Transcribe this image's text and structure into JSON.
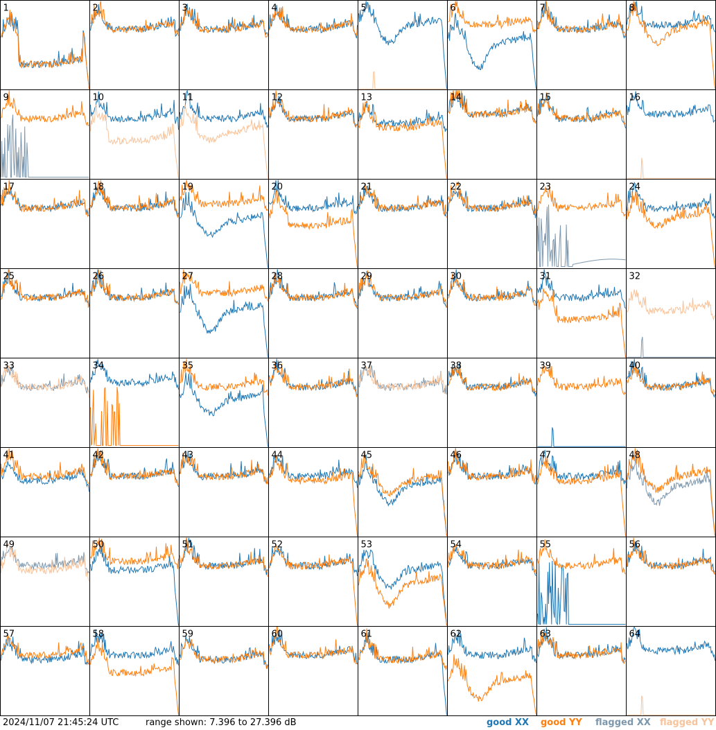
{
  "timestamp": "2024/11/07 21:45:24 UTC",
  "range_text": "range shown: 7.396 to 27.396 dB",
  "legend": [
    {
      "word": "good",
      "pol": "XX",
      "color": "#1f77b4"
    },
    {
      "word": "good",
      "pol": "YY",
      "color": "#ff7f0e"
    },
    {
      "word": "flagged",
      "pol": "XX",
      "color": "#7d97ad"
    },
    {
      "word": "flagged",
      "pol": "YY",
      "color": "#f8c39a"
    }
  ],
  "chart_data": {
    "type": "line",
    "ylim": [
      7.396,
      27.396
    ],
    "units": "dB",
    "grid_rows": 8,
    "grid_cols": 8,
    "panels": [
      {
        "id": "1",
        "xx": {
          "state": "good",
          "shape": "sag",
          "base": 19,
          "depth": 6
        },
        "yy": {
          "state": "good",
          "shape": "sag",
          "base": 19,
          "depth": 6
        }
      },
      {
        "id": "2",
        "xx": {
          "state": "good",
          "shape": "normal",
          "base": 21
        },
        "yy": {
          "state": "good",
          "shape": "normal",
          "base": 21
        }
      },
      {
        "id": "3",
        "xx": {
          "state": "good",
          "shape": "normal",
          "base": 21
        },
        "yy": {
          "state": "good",
          "shape": "normal",
          "base": 21
        }
      },
      {
        "id": "4",
        "xx": {
          "state": "good",
          "shape": "normal",
          "base": 21
        },
        "yy": {
          "state": "good",
          "shape": "normal",
          "base": 21
        }
      },
      {
        "id": "5",
        "xx": {
          "state": "good",
          "shape": "dip",
          "base": 22,
          "depth": 4
        },
        "yy": {
          "state": "flagged",
          "shape": "dead"
        }
      },
      {
        "id": "6",
        "xx": {
          "state": "good",
          "shape": "dip",
          "base": 18,
          "depth": 6
        },
        "yy": {
          "state": "good",
          "shape": "normal",
          "base": 22
        }
      },
      {
        "id": "7",
        "xx": {
          "state": "good",
          "shape": "normal",
          "base": 21
        },
        "yy": {
          "state": "good",
          "shape": "normal",
          "base": 21
        }
      },
      {
        "id": "8",
        "xx": {
          "state": "good",
          "shape": "normal",
          "base": 22
        },
        "yy": {
          "state": "good",
          "shape": "dip",
          "base": 21,
          "depth": 3
        }
      },
      {
        "id": "9",
        "xx": {
          "state": "flagged",
          "shape": "spiky"
        },
        "yy": {
          "state": "good",
          "shape": "normal",
          "base": 21
        }
      },
      {
        "id": "10",
        "xx": {
          "state": "good",
          "shape": "normal",
          "base": 21
        },
        "yy": {
          "state": "flagged",
          "shape": "sag",
          "base": 18,
          "depth": 2
        }
      },
      {
        "id": "11",
        "xx": {
          "state": "good",
          "shape": "normal",
          "base": 21
        },
        "yy": {
          "state": "flagged",
          "shape": "dip",
          "base": 18,
          "depth": 2
        }
      },
      {
        "id": "12",
        "xx": {
          "state": "good",
          "shape": "normal",
          "base": 21
        },
        "yy": {
          "state": "good",
          "shape": "normal",
          "base": 21
        }
      },
      {
        "id": "13",
        "xx": {
          "state": "good",
          "shape": "normal",
          "base": 20
        },
        "yy": {
          "state": "good",
          "shape": "drop",
          "base": 19
        }
      },
      {
        "id": "14",
        "xx": {
          "state": "good",
          "shape": "normal",
          "base": 22
        },
        "yy": {
          "state": "good",
          "shape": "normal",
          "base": 22
        }
      },
      {
        "id": "15",
        "xx": {
          "state": "good",
          "shape": "normal",
          "base": 21
        },
        "yy": {
          "state": "good",
          "shape": "normal",
          "base": 21
        }
      },
      {
        "id": "16",
        "xx": {
          "state": "good",
          "shape": "normal",
          "base": 22
        },
        "yy": {
          "state": "flagged",
          "shape": "dead"
        }
      },
      {
        "id": "17",
        "xx": {
          "state": "good",
          "shape": "normal",
          "base": 21
        },
        "yy": {
          "state": "good",
          "shape": "normal",
          "base": 21
        }
      },
      {
        "id": "18",
        "xx": {
          "state": "good",
          "shape": "normal",
          "base": 21
        },
        "yy": {
          "state": "good",
          "shape": "normal",
          "base": 21
        }
      },
      {
        "id": "19",
        "xx": {
          "state": "good",
          "shape": "dip",
          "base": 18,
          "depth": 3
        },
        "yy": {
          "state": "good",
          "shape": "normal",
          "base": 22
        }
      },
      {
        "id": "20",
        "xx": {
          "state": "good",
          "shape": "normal",
          "base": 21
        },
        "yy": {
          "state": "good",
          "shape": "sag",
          "base": 19,
          "depth": 2
        }
      },
      {
        "id": "21",
        "xx": {
          "state": "good",
          "shape": "normal",
          "base": 21
        },
        "yy": {
          "state": "good",
          "shape": "normal",
          "base": 21
        }
      },
      {
        "id": "22",
        "xx": {
          "state": "good",
          "shape": "normal",
          "base": 21
        },
        "yy": {
          "state": "good",
          "shape": "normal",
          "base": 21
        }
      },
      {
        "id": "23",
        "xx": {
          "state": "flagged",
          "shape": "spiky_low"
        },
        "yy": {
          "state": "good",
          "shape": "normal",
          "base": 21
        }
      },
      {
        "id": "24",
        "xx": {
          "state": "good",
          "shape": "normal",
          "base": 21
        },
        "yy": {
          "state": "good",
          "shape": "dip",
          "base": 19,
          "depth": 2
        }
      },
      {
        "id": "25",
        "xx": {
          "state": "good",
          "shape": "normal",
          "base": 21
        },
        "yy": {
          "state": "good",
          "shape": "normal",
          "base": 21
        }
      },
      {
        "id": "26",
        "xx": {
          "state": "good",
          "shape": "normal",
          "base": 21
        },
        "yy": {
          "state": "good",
          "shape": "normal",
          "base": 21
        }
      },
      {
        "id": "27",
        "xx": {
          "state": "good",
          "shape": "dip",
          "base": 18,
          "depth": 5
        },
        "yy": {
          "state": "good",
          "shape": "normal",
          "base": 22
        }
      },
      {
        "id": "28",
        "xx": {
          "state": "good",
          "shape": "normal",
          "base": 21
        },
        "yy": {
          "state": "good",
          "shape": "normal",
          "base": 21
        }
      },
      {
        "id": "29",
        "xx": {
          "state": "good",
          "shape": "normal",
          "base": 21
        },
        "yy": {
          "state": "good",
          "shape": "normal",
          "base": 21
        }
      },
      {
        "id": "30",
        "xx": {
          "state": "good",
          "shape": "normal",
          "base": 21
        },
        "yy": {
          "state": "good",
          "shape": "normal",
          "base": 21
        }
      },
      {
        "id": "31",
        "xx": {
          "state": "good",
          "shape": "normal",
          "base": 21
        },
        "yy": {
          "state": "good",
          "shape": "sag",
          "base": 18,
          "depth": 2
        }
      },
      {
        "id": "32",
        "xx": {
          "state": "flagged",
          "shape": "dead"
        },
        "yy": {
          "state": "flagged",
          "shape": "normal",
          "base": 18
        }
      },
      {
        "id": "33",
        "xx": {
          "state": "flagged",
          "shape": "normal",
          "base": 21
        },
        "yy": {
          "state": "flagged",
          "shape": "normal",
          "base": 21
        }
      },
      {
        "id": "34",
        "xx": {
          "state": "good",
          "shape": "normal",
          "base": 22
        },
        "yy": {
          "state": "good",
          "shape": "spiky"
        }
      },
      {
        "id": "35",
        "xx": {
          "state": "good",
          "shape": "dip",
          "base": 18,
          "depth": 3
        },
        "yy": {
          "state": "good",
          "shape": "normal",
          "base": 21
        }
      },
      {
        "id": "36",
        "xx": {
          "state": "good",
          "shape": "normal",
          "base": 21
        },
        "yy": {
          "state": "good",
          "shape": "normal",
          "base": 21
        }
      },
      {
        "id": "37",
        "xx": {
          "state": "flagged",
          "shape": "normal",
          "base": 21
        },
        "yy": {
          "state": "flagged",
          "shape": "normal",
          "base": 21
        }
      },
      {
        "id": "38",
        "xx": {
          "state": "good",
          "shape": "normal",
          "base": 21
        },
        "yy": {
          "state": "good",
          "shape": "normal",
          "base": 21
        }
      },
      {
        "id": "39",
        "xx": {
          "state": "good",
          "shape": "dead"
        },
        "yy": {
          "state": "good",
          "shape": "normal",
          "base": 21
        }
      },
      {
        "id": "40",
        "xx": {
          "state": "good",
          "shape": "normal",
          "base": 21
        },
        "yy": {
          "state": "good",
          "shape": "normal",
          "base": 21
        }
      },
      {
        "id": "41",
        "xx": {
          "state": "good",
          "shape": "normal",
          "base": 20
        },
        "yy": {
          "state": "good",
          "shape": "normal",
          "base": 21
        }
      },
      {
        "id": "42",
        "xx": {
          "state": "good",
          "shape": "normal",
          "base": 21
        },
        "yy": {
          "state": "good",
          "shape": "normal",
          "base": 21
        }
      },
      {
        "id": "43",
        "xx": {
          "state": "good",
          "shape": "normal",
          "base": 21
        },
        "yy": {
          "state": "good",
          "shape": "normal",
          "base": 21
        }
      },
      {
        "id": "44",
        "xx": {
          "state": "good",
          "shape": "normal",
          "base": 21
        },
        "yy": {
          "state": "good",
          "shape": "drop",
          "base": 20
        }
      },
      {
        "id": "45",
        "xx": {
          "state": "good",
          "shape": "dip",
          "base": 19,
          "depth": 4
        },
        "yy": {
          "state": "good",
          "shape": "dip",
          "base": 20,
          "depth": 3
        }
      },
      {
        "id": "46",
        "xx": {
          "state": "good",
          "shape": "normal",
          "base": 21
        },
        "yy": {
          "state": "good",
          "shape": "normal",
          "base": 21
        }
      },
      {
        "id": "47",
        "xx": {
          "state": "good",
          "shape": "normal",
          "base": 21
        },
        "yy": {
          "state": "good",
          "shape": "drop",
          "base": 20
        }
      },
      {
        "id": "48",
        "xx": {
          "state": "flagged",
          "shape": "dip",
          "base": 19,
          "depth": 4
        },
        "yy": {
          "state": "good",
          "shape": "dip",
          "base": 21,
          "depth": 3
        }
      },
      {
        "id": "49",
        "xx": {
          "state": "flagged",
          "shape": "normal",
          "base": 21
        },
        "yy": {
          "state": "flagged",
          "shape": "normal",
          "base": 20
        }
      },
      {
        "id": "50",
        "xx": {
          "state": "good",
          "shape": "drop",
          "base": 20
        },
        "yy": {
          "state": "good",
          "shape": "normal",
          "base": 22
        }
      },
      {
        "id": "51",
        "xx": {
          "state": "good",
          "shape": "normal",
          "base": 21
        },
        "yy": {
          "state": "good",
          "shape": "normal",
          "base": 21
        }
      },
      {
        "id": "52",
        "xx": {
          "state": "good",
          "shape": "normal",
          "base": 21
        },
        "yy": {
          "state": "good",
          "shape": "drop",
          "base": 21
        }
      },
      {
        "id": "53",
        "xx": {
          "state": "good",
          "shape": "dip",
          "base": 20,
          "depth": 4
        },
        "yy": {
          "state": "good",
          "shape": "dip",
          "base": 17,
          "depth": 5
        }
      },
      {
        "id": "54",
        "xx": {
          "state": "good",
          "shape": "normal",
          "base": 21
        },
        "yy": {
          "state": "good",
          "shape": "normal",
          "base": 21
        }
      },
      {
        "id": "55",
        "xx": {
          "state": "good",
          "shape": "spiky"
        },
        "yy": {
          "state": "good",
          "shape": "normal",
          "base": 21
        }
      },
      {
        "id": "56",
        "xx": {
          "state": "good",
          "shape": "normal",
          "base": 21
        },
        "yy": {
          "state": "good",
          "shape": "normal",
          "base": 21
        }
      },
      {
        "id": "57",
        "xx": {
          "state": "good",
          "shape": "normal",
          "base": 20
        },
        "yy": {
          "state": "good",
          "shape": "normal",
          "base": 21
        }
      },
      {
        "id": "58",
        "xx": {
          "state": "good",
          "shape": "normal",
          "base": 21
        },
        "yy": {
          "state": "good",
          "shape": "sag",
          "base": 19,
          "depth": 2
        }
      },
      {
        "id": "59",
        "xx": {
          "state": "good",
          "shape": "normal",
          "base": 20
        },
        "yy": {
          "state": "good",
          "shape": "normal",
          "base": 20
        }
      },
      {
        "id": "60",
        "xx": {
          "state": "good",
          "shape": "normal",
          "base": 21
        },
        "yy": {
          "state": "good",
          "shape": "normal",
          "base": 21
        }
      },
      {
        "id": "61",
        "xx": {
          "state": "good",
          "shape": "drop",
          "base": 20
        },
        "yy": {
          "state": "good",
          "shape": "normal",
          "base": 20
        }
      },
      {
        "id": "62",
        "xx": {
          "state": "good",
          "shape": "normal",
          "base": 21
        },
        "yy": {
          "state": "good",
          "shape": "dip",
          "base": 15,
          "depth": 4
        }
      },
      {
        "id": "63",
        "xx": {
          "state": "good",
          "shape": "normal",
          "base": 21
        },
        "yy": {
          "state": "good",
          "shape": "normal",
          "base": 21
        }
      },
      {
        "id": "64",
        "xx": {
          "state": "good",
          "shape": "normal",
          "base": 22
        },
        "yy": {
          "state": "flagged",
          "shape": "dead"
        }
      }
    ]
  }
}
